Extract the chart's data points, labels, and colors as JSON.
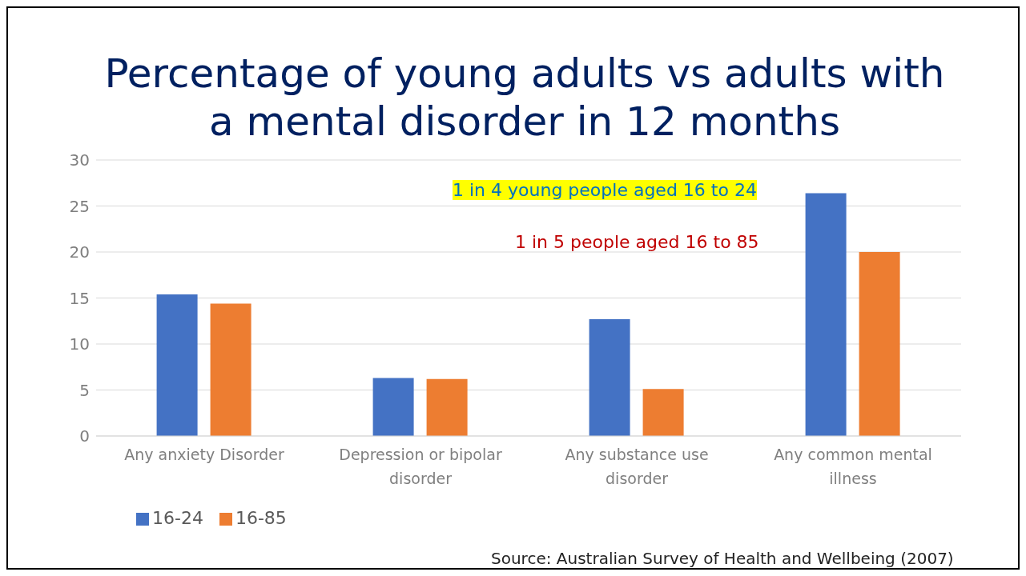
{
  "chart_data": {
    "type": "bar",
    "title": "Percentage of young adults vs adults with a mental disorder in 12 months",
    "categories": [
      "Any anxiety Disorder",
      "Depression or bipolar disorder",
      "Any substance use disorder",
      "Any common mental illness"
    ],
    "series": [
      {
        "name": "16-24",
        "color": "#4472c4",
        "values": [
          15.4,
          6.3,
          12.7,
          26.4
        ]
      },
      {
        "name": "16-85",
        "color": "#ed7d31",
        "values": [
          14.4,
          6.2,
          5.1,
          20.0
        ]
      }
    ],
    "ylim": [
      0,
      30
    ],
    "yticks": [
      0,
      5,
      10,
      15,
      20,
      25,
      30
    ],
    "grid": "y",
    "legend": "bottom",
    "annotations": [
      "1 in 4 young people aged 16 to 24",
      "1 in 5 people aged 16 to 85",
      "Source: Australian Survey of Health and Wellbeing (2007)"
    ]
  }
}
